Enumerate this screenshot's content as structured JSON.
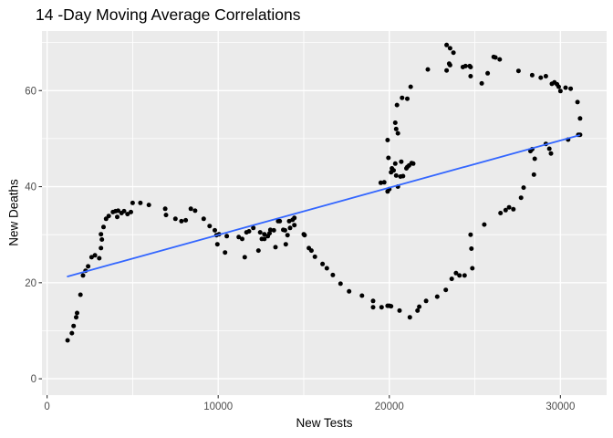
{
  "chart": {
    "title": "14 -Day Moving Average Correlations",
    "xlabel": "New Tests",
    "ylabel": "New Deaths"
  },
  "chart_data": {
    "type": "scatter",
    "title": "14 -Day Moving Average Correlations",
    "xlabel": "New Tests",
    "ylabel": "New Deaths",
    "xlim": [
      -300,
      32700
    ],
    "ylim": [
      -3.4,
      72.4
    ],
    "x_ticks": [
      0,
      10000,
      20000,
      30000
    ],
    "y_ticks": [
      0,
      20,
      40,
      60
    ],
    "x_minor_ticks": [
      5000,
      15000,
      25000
    ],
    "y_minor_ticks": [
      10,
      30,
      50,
      70
    ],
    "grid": true,
    "legend": false,
    "colors": {
      "panel_bg": "#EBEBEB",
      "grid": "#FFFFFF",
      "point": "#000000",
      "trend": "#3366FF",
      "tick_label": "#4D4D4D",
      "tick_mark": "#333333"
    },
    "trend_line": {
      "x": [
        1200,
        31100
      ],
      "y": [
        21.3,
        50.7
      ]
    },
    "points": [
      [
        1200,
        8
      ],
      [
        1450,
        9.5
      ],
      [
        1550,
        11
      ],
      [
        1700,
        12.8
      ],
      [
        1750,
        13.7
      ],
      [
        1950,
        17.5
      ],
      [
        2100,
        21.5
      ],
      [
        2250,
        22.5
      ],
      [
        2400,
        23.4
      ],
      [
        2600,
        25.3
      ],
      [
        2800,
        25.7
      ],
      [
        3050,
        25.1
      ],
      [
        3150,
        27.2
      ],
      [
        3200,
        29
      ],
      [
        3150,
        30.1
      ],
      [
        3300,
        31.6
      ],
      [
        3450,
        33.3
      ],
      [
        3600,
        33.9
      ],
      [
        3850,
        34.7
      ],
      [
        4000,
        34.9
      ],
      [
        4100,
        33.7
      ],
      [
        4150,
        35
      ],
      [
        4350,
        34.5
      ],
      [
        4500,
        34.9
      ],
      [
        4700,
        34.3
      ],
      [
        4900,
        34.7
      ],
      [
        5000,
        36.6
      ],
      [
        5450,
        36.6
      ],
      [
        5950,
        36.2
      ],
      [
        6900,
        35.4
      ],
      [
        6950,
        34.1
      ],
      [
        7500,
        33.3
      ],
      [
        7850,
        32.8
      ],
      [
        8100,
        33
      ],
      [
        8400,
        35.4
      ],
      [
        8650,
        35
      ],
      [
        9150,
        33.3
      ],
      [
        9500,
        31.8
      ],
      [
        9800,
        30.9
      ],
      [
        9900,
        29.9
      ],
      [
        9950,
        28
      ],
      [
        10050,
        30.1
      ],
      [
        10400,
        26.3
      ],
      [
        10500,
        29.7
      ],
      [
        11200,
        29.5
      ],
      [
        11400,
        29.1
      ],
      [
        11550,
        25.3
      ],
      [
        11650,
        30.5
      ],
      [
        11800,
        30.7
      ],
      [
        12050,
        31.4
      ],
      [
        12350,
        26.7
      ],
      [
        12450,
        30.5
      ],
      [
        12550,
        29.1
      ],
      [
        12700,
        30.1
      ],
      [
        12700,
        29.1
      ],
      [
        12900,
        29.7
      ],
      [
        13000,
        30.3
      ],
      [
        13050,
        31
      ],
      [
        13250,
        30.9
      ],
      [
        13350,
        27.4
      ],
      [
        13500,
        32.8
      ],
      [
        13600,
        32.8
      ],
      [
        13800,
        31
      ],
      [
        13900,
        30.9
      ],
      [
        13950,
        28
      ],
      [
        14050,
        29.9
      ],
      [
        14150,
        32.8
      ],
      [
        14200,
        31.4
      ],
      [
        14350,
        33.1
      ],
      [
        14450,
        33.5
      ],
      [
        14450,
        32
      ],
      [
        15000,
        30.1
      ],
      [
        15050,
        29.9
      ],
      [
        15300,
        27.2
      ],
      [
        15450,
        26.7
      ],
      [
        15650,
        25.4
      ],
      [
        16100,
        23.9
      ],
      [
        16350,
        23
      ],
      [
        16700,
        21.6
      ],
      [
        17150,
        19.8
      ],
      [
        17650,
        18.2
      ],
      [
        18400,
        17.3
      ],
      [
        19050,
        16.2
      ],
      [
        19050,
        14.9
      ],
      [
        19550,
        14.9
      ],
      [
        19900,
        15.2
      ],
      [
        20000,
        15.2
      ],
      [
        20100,
        15.1
      ],
      [
        20600,
        14.2
      ],
      [
        21200,
        12.8
      ],
      [
        21650,
        14.2
      ],
      [
        21750,
        15
      ],
      [
        22150,
        16.2
      ],
      [
        22800,
        17.1
      ],
      [
        23300,
        18.5
      ],
      [
        23650,
        20.8
      ],
      [
        23900,
        22
      ],
      [
        24100,
        21.5
      ],
      [
        24400,
        21.5
      ],
      [
        24850,
        23
      ],
      [
        24800,
        27.1
      ],
      [
        24750,
        30
      ],
      [
        25550,
        32.1
      ],
      [
        26500,
        34.5
      ],
      [
        26800,
        35.1
      ],
      [
        27000,
        35.7
      ],
      [
        27250,
        35.3
      ],
      [
        27700,
        37.7
      ],
      [
        27850,
        39.8
      ],
      [
        28450,
        42.5
      ],
      [
        28250,
        47.4
      ],
      [
        28350,
        47.8
      ],
      [
        28500,
        45.8
      ],
      [
        29150,
        48.9
      ],
      [
        29350,
        47.9
      ],
      [
        29450,
        46.9
      ],
      [
        30450,
        49.8
      ],
      [
        31050,
        50.8
      ],
      [
        19500,
        40.8
      ],
      [
        19700,
        40.9
      ],
      [
        19900,
        39
      ],
      [
        20000,
        39.5
      ],
      [
        20500,
        40
      ],
      [
        20100,
        43
      ],
      [
        20150,
        43.8
      ],
      [
        20250,
        43.4
      ],
      [
        20400,
        42.3
      ],
      [
        20650,
        42.1
      ],
      [
        20800,
        42.2
      ],
      [
        20350,
        44.8
      ],
      [
        20700,
        45.2
      ],
      [
        21000,
        43.8
      ],
      [
        21050,
        44.1
      ],
      [
        21150,
        44.4
      ],
      [
        21300,
        44.9
      ],
      [
        21400,
        44.8
      ],
      [
        19950,
        46
      ],
      [
        19900,
        49.7
      ],
      [
        20500,
        51.1
      ],
      [
        20400,
        52
      ],
      [
        20350,
        53.3
      ],
      [
        20450,
        57
      ],
      [
        20750,
        58.5
      ],
      [
        21050,
        58.3
      ],
      [
        21250,
        60.8
      ],
      [
        22250,
        64.4
      ],
      [
        23350,
        64.2
      ],
      [
        23500,
        65.6
      ],
      [
        23550,
        65.3
      ],
      [
        23350,
        69.5
      ],
      [
        23550,
        68.8
      ],
      [
        23750,
        67.9
      ],
      [
        24300,
        64.9
      ],
      [
        24450,
        65.1
      ],
      [
        24700,
        65.1
      ],
      [
        24750,
        64.9
      ],
      [
        24750,
        63
      ],
      [
        25400,
        61.5
      ],
      [
        25750,
        63.6
      ],
      [
        26100,
        67
      ],
      [
        26200,
        66.9
      ],
      [
        26450,
        66.5
      ],
      [
        27550,
        64.1
      ],
      [
        28350,
        63.2
      ],
      [
        28850,
        62.7
      ],
      [
        29150,
        63
      ],
      [
        29500,
        61.4
      ],
      [
        29650,
        61.7
      ],
      [
        29800,
        61.3
      ],
      [
        29900,
        60.8
      ],
      [
        30000,
        59.9
      ],
      [
        30300,
        60.6
      ],
      [
        30600,
        60.4
      ],
      [
        31000,
        57.6
      ],
      [
        31150,
        54.2
      ],
      [
        31150,
        50.8
      ]
    ]
  }
}
